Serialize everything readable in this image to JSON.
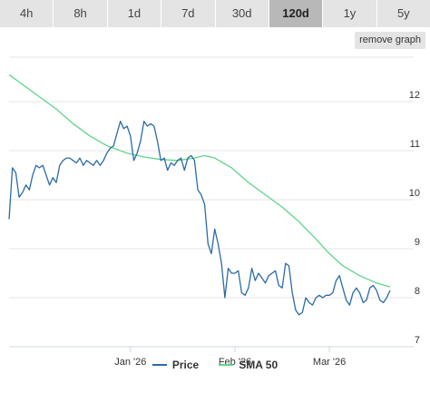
{
  "tabs": [
    {
      "label": "4h",
      "active": false
    },
    {
      "label": "8h",
      "active": false
    },
    {
      "label": "1d",
      "active": false
    },
    {
      "label": "7d",
      "active": false
    },
    {
      "label": "30d",
      "active": false
    },
    {
      "label": "120d",
      "active": true
    },
    {
      "label": "1y",
      "active": false
    },
    {
      "label": "5y",
      "active": false
    }
  ],
  "remove_graph_label": "remove graph",
  "colors": {
    "price": "#2b6ba6",
    "sma": "#5fd48a",
    "grid": "#e6e6e6",
    "active_tab": "#b8b8b8"
  },
  "chart_data": {
    "type": "line",
    "title": "",
    "xlabel": "",
    "ylabel": "",
    "x_range": [
      "2025-11-26",
      "2026-03-26"
    ],
    "ylim": [
      7,
      12.5
    ],
    "y_ticks": [
      7,
      8,
      9,
      10,
      11,
      12
    ],
    "y_tick_labels": [
      "7",
      "8",
      "9",
      "10",
      "11",
      "12"
    ],
    "x_ticks": [
      {
        "date": "2026-01-01",
        "label": "Jan '26"
      },
      {
        "date": "2026-02-01",
        "label": "Feb '26"
      },
      {
        "date": "2026-03-01",
        "label": "Mar '26"
      }
    ],
    "grid": true,
    "legend_position": "bottom",
    "series": [
      {
        "name": "Price",
        "color": "#2b6ba6",
        "points": [
          [
            "2025-11-26",
            9.6
          ],
          [
            "2025-11-27",
            10.65
          ],
          [
            "2025-11-28",
            10.55
          ],
          [
            "2025-11-29",
            10.05
          ],
          [
            "2025-11-30",
            10.15
          ],
          [
            "2025-12-01",
            10.3
          ],
          [
            "2025-12-02",
            10.2
          ],
          [
            "2025-12-03",
            10.5
          ],
          [
            "2025-12-04",
            10.7
          ],
          [
            "2025-12-05",
            10.65
          ],
          [
            "2025-12-06",
            10.7
          ],
          [
            "2025-12-07",
            10.5
          ],
          [
            "2025-12-08",
            10.3
          ],
          [
            "2025-12-09",
            10.45
          ],
          [
            "2025-12-10",
            10.35
          ],
          [
            "2025-12-11",
            10.7
          ],
          [
            "2025-12-12",
            10.8
          ],
          [
            "2025-12-13",
            10.85
          ],
          [
            "2025-12-14",
            10.85
          ],
          [
            "2025-12-15",
            10.8
          ],
          [
            "2025-12-16",
            10.75
          ],
          [
            "2025-12-17",
            10.85
          ],
          [
            "2025-12-18",
            10.7
          ],
          [
            "2025-12-19",
            10.8
          ],
          [
            "2025-12-20",
            10.75
          ],
          [
            "2025-12-21",
            10.7
          ],
          [
            "2025-12-22",
            10.8
          ],
          [
            "2025-12-23",
            10.7
          ],
          [
            "2025-12-24",
            10.8
          ],
          [
            "2025-12-25",
            10.95
          ],
          [
            "2025-12-26",
            11.05
          ],
          [
            "2025-12-27",
            11.1
          ],
          [
            "2025-12-28",
            11.35
          ],
          [
            "2025-12-29",
            11.6
          ],
          [
            "2025-12-30",
            11.45
          ],
          [
            "2025-12-31",
            11.5
          ],
          [
            "2026-01-01",
            11.3
          ],
          [
            "2026-01-02",
            10.8
          ],
          [
            "2026-01-03",
            10.95
          ],
          [
            "2026-01-04",
            11.2
          ],
          [
            "2026-01-05",
            11.6
          ],
          [
            "2026-01-06",
            11.5
          ],
          [
            "2026-01-07",
            11.55
          ],
          [
            "2026-01-08",
            11.5
          ],
          [
            "2026-01-09",
            11.2
          ],
          [
            "2026-01-10",
            10.8
          ],
          [
            "2026-01-11",
            10.85
          ],
          [
            "2026-01-12",
            10.6
          ],
          [
            "2026-01-13",
            10.75
          ],
          [
            "2026-01-14",
            10.7
          ],
          [
            "2026-01-15",
            10.8
          ],
          [
            "2026-01-16",
            10.85
          ],
          [
            "2026-01-17",
            10.6
          ],
          [
            "2026-01-18",
            10.85
          ],
          [
            "2026-01-19",
            10.9
          ],
          [
            "2026-01-20",
            10.8
          ],
          [
            "2026-01-21",
            10.2
          ],
          [
            "2026-01-22",
            10.1
          ],
          [
            "2026-01-23",
            9.9
          ],
          [
            "2026-01-24",
            9.1
          ],
          [
            "2026-01-25",
            8.9
          ],
          [
            "2026-01-26",
            9.4
          ],
          [
            "2026-01-27",
            9.1
          ],
          [
            "2026-01-28",
            8.7
          ],
          [
            "2026-01-29",
            8.0
          ],
          [
            "2026-01-30",
            8.6
          ],
          [
            "2026-01-31",
            8.5
          ],
          [
            "2026-02-01",
            8.5
          ],
          [
            "2026-02-02",
            8.55
          ],
          [
            "2026-02-03",
            8.1
          ],
          [
            "2026-02-04",
            8.05
          ],
          [
            "2026-02-05",
            8.2
          ],
          [
            "2026-02-06",
            8.6
          ],
          [
            "2026-02-07",
            8.35
          ],
          [
            "2026-02-08",
            8.5
          ],
          [
            "2026-02-09",
            8.4
          ],
          [
            "2026-02-10",
            8.3
          ],
          [
            "2026-02-11",
            8.45
          ],
          [
            "2026-02-12",
            8.5
          ],
          [
            "2026-02-13",
            8.55
          ],
          [
            "2026-02-14",
            8.25
          ],
          [
            "2026-02-15",
            8.2
          ],
          [
            "2026-02-16",
            8.7
          ],
          [
            "2026-02-17",
            8.65
          ],
          [
            "2026-02-18",
            8.1
          ],
          [
            "2026-02-19",
            7.75
          ],
          [
            "2026-02-20",
            7.65
          ],
          [
            "2026-02-21",
            7.7
          ],
          [
            "2026-02-22",
            8.0
          ],
          [
            "2026-02-23",
            7.9
          ],
          [
            "2026-02-24",
            7.85
          ],
          [
            "2026-02-25",
            8.0
          ],
          [
            "2026-02-26",
            8.05
          ],
          [
            "2026-02-27",
            8.0
          ],
          [
            "2026-02-28",
            8.05
          ],
          [
            "2026-03-01",
            8.05
          ],
          [
            "2026-03-02",
            8.1
          ],
          [
            "2026-03-03",
            8.35
          ],
          [
            "2026-03-04",
            8.45
          ],
          [
            "2026-03-05",
            8.2
          ],
          [
            "2026-03-06",
            7.95
          ],
          [
            "2026-03-07",
            7.85
          ],
          [
            "2026-03-08",
            8.1
          ],
          [
            "2026-03-09",
            8.2
          ],
          [
            "2026-03-10",
            8.1
          ],
          [
            "2026-03-11",
            7.9
          ],
          [
            "2026-03-12",
            7.95
          ],
          [
            "2026-03-13",
            8.2
          ],
          [
            "2026-03-14",
            8.25
          ],
          [
            "2026-03-15",
            8.15
          ],
          [
            "2026-03-16",
            7.95
          ],
          [
            "2026-03-17",
            7.9
          ],
          [
            "2026-03-18",
            8.0
          ],
          [
            "2026-03-19",
            8.15
          ]
        ]
      },
      {
        "name": "SMA 50",
        "color": "#5fd48a",
        "points": [
          [
            "2025-11-26",
            12.55
          ],
          [
            "2025-11-30",
            12.35
          ],
          [
            "2025-12-05",
            12.1
          ],
          [
            "2025-12-10",
            11.85
          ],
          [
            "2025-12-15",
            11.55
          ],
          [
            "2025-12-20",
            11.3
          ],
          [
            "2025-12-25",
            11.1
          ],
          [
            "2025-12-31",
            10.95
          ],
          [
            "2026-01-05",
            10.87
          ],
          [
            "2026-01-10",
            10.82
          ],
          [
            "2026-01-15",
            10.8
          ],
          [
            "2026-01-20",
            10.85
          ],
          [
            "2026-01-23",
            10.9
          ],
          [
            "2026-01-26",
            10.85
          ],
          [
            "2026-01-31",
            10.65
          ],
          [
            "2026-02-05",
            10.35
          ],
          [
            "2026-02-10",
            10.1
          ],
          [
            "2026-02-15",
            9.85
          ],
          [
            "2026-02-20",
            9.55
          ],
          [
            "2026-02-25",
            9.2
          ],
          [
            "2026-03-01",
            8.9
          ],
          [
            "2026-03-05",
            8.65
          ],
          [
            "2026-03-10",
            8.45
          ],
          [
            "2026-03-15",
            8.3
          ],
          [
            "2026-03-19",
            8.22
          ]
        ]
      }
    ]
  }
}
